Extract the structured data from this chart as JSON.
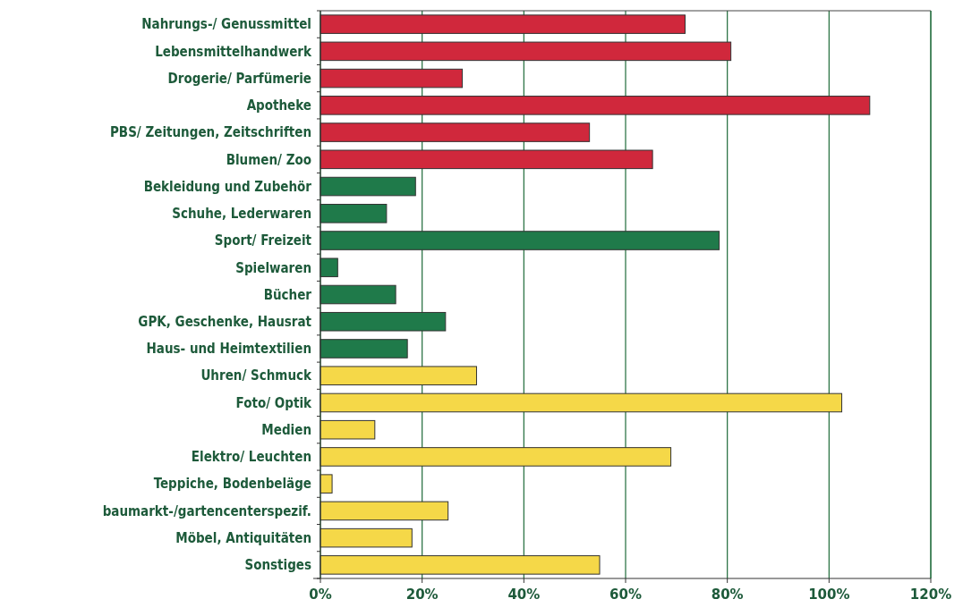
{
  "chart_data": {
    "type": "bar",
    "orientation": "horizontal",
    "categories": [
      "Nahrungs-/ Genussmittel",
      "Lebensmittelhandwerk",
      "Drogerie/ Parfümerie",
      "Apotheke",
      "PBS/ Zeitungen, Zeitschriften",
      "Blumen/ Zoo",
      "Bekleidung und Zubehör",
      "Schuhe, Lederwaren",
      "Sport/ Freizeit",
      "Spielwaren",
      "Bücher",
      "GPK, Geschenke, Hausrat",
      "Haus- und Heimtextilien",
      "Uhren/ Schmuck",
      "Foto/ Optik",
      "Medien",
      "Elektro/ Leuchten",
      "Teppiche, Bodenbeläge",
      "baumarkt-/gartencenterspezif.",
      "Möbel, Antiquitäten",
      "Sonstiges"
    ],
    "values": [
      71.7,
      80.7,
      27.9,
      108,
      52.9,
      65.3,
      18.7,
      13.0,
      78.4,
      3.4,
      14.8,
      24.6,
      17.1,
      30.7,
      102.5,
      10.7,
      68.9,
      2.3,
      25.1,
      18.0,
      54.9
    ],
    "colors": [
      "#d0283c",
      "#d0283c",
      "#d0283c",
      "#d0283c",
      "#d0283c",
      "#d0283c",
      "#1f7a4a",
      "#1f7a4a",
      "#1f7a4a",
      "#1f7a4a",
      "#1f7a4a",
      "#1f7a4a",
      "#1f7a4a",
      "#f5d848",
      "#f5d848",
      "#f5d848",
      "#f5d848",
      "#f5d848",
      "#f5d848",
      "#f5d848",
      "#f5d848"
    ],
    "xlim": [
      0,
      120
    ],
    "xticks": [
      {
        "value": 0,
        "label": "0%"
      },
      {
        "value": 20,
        "label": "20%"
      },
      {
        "value": 40,
        "label": "40%"
      },
      {
        "value": 60,
        "label": "60%"
      },
      {
        "value": 80,
        "label": "80%"
      },
      {
        "value": 100,
        "label": "100%"
      },
      {
        "value": 120,
        "label": "120%"
      }
    ],
    "grid": "x"
  }
}
